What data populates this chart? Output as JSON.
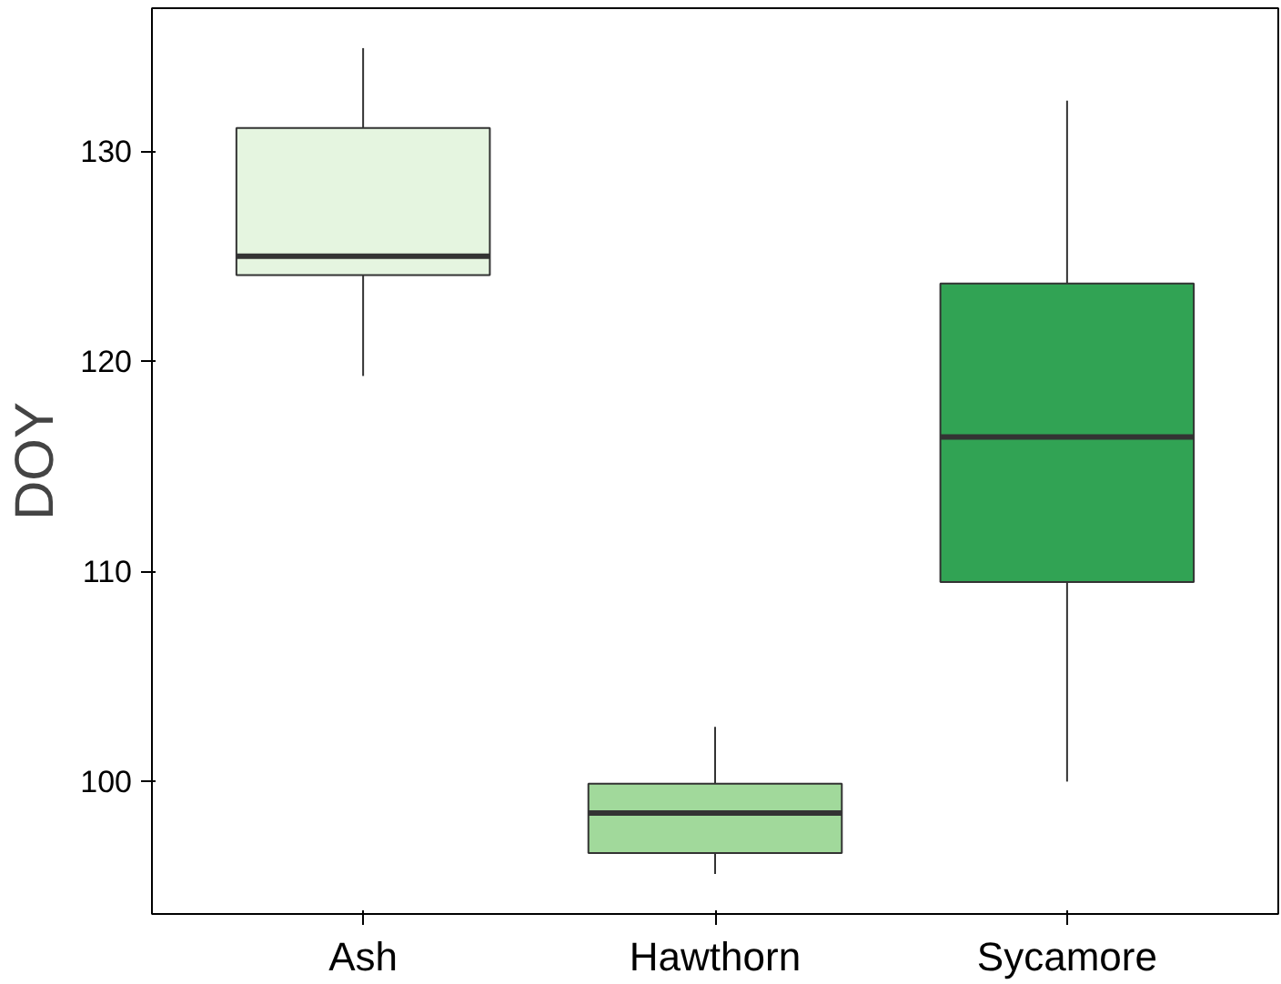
{
  "chart_data": {
    "type": "box",
    "ylabel": "DOY",
    "categories": [
      "Ash",
      "Hawthorn",
      "Sycamore"
    ],
    "colors": [
      "#e5f5e0",
      "#a1d99b",
      "#31a354"
    ],
    "boxes": [
      {
        "low": 119.3,
        "q1": 124.1,
        "median": 125.0,
        "q3": 131.1,
        "high": 134.9
      },
      {
        "low": 95.6,
        "q1": 96.6,
        "median": 98.5,
        "q3": 99.9,
        "high": 102.6
      },
      {
        "low": 100.0,
        "q1": 109.5,
        "median": 116.4,
        "q3": 123.7,
        "high": 132.4
      }
    ],
    "ylim": [
      93.7,
      136.8
    ],
    "yticks": [
      100,
      110,
      120,
      130
    ],
    "grid": false
  }
}
